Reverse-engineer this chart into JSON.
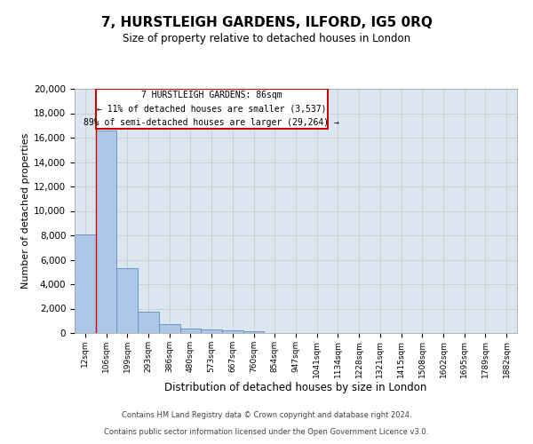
{
  "title": "7, HURSTLEIGH GARDENS, ILFORD, IG5 0RQ",
  "subtitle": "Size of property relative to detached houses in London",
  "xlabel": "Distribution of detached houses by size in London",
  "ylabel": "Number of detached properties",
  "bar_labels": [
    "12sqm",
    "106sqm",
    "199sqm",
    "293sqm",
    "386sqm",
    "480sqm",
    "573sqm",
    "667sqm",
    "760sqm",
    "854sqm",
    "947sqm",
    "1041sqm",
    "1134sqm",
    "1228sqm",
    "1321sqm",
    "1415sqm",
    "1508sqm",
    "1602sqm",
    "1695sqm",
    "1789sqm",
    "1882sqm"
  ],
  "bar_values": [
    8100,
    16600,
    5300,
    1750,
    700,
    380,
    300,
    220,
    180,
    0,
    0,
    0,
    0,
    0,
    0,
    0,
    0,
    0,
    0,
    0,
    0
  ],
  "bar_color": "#aec6e8",
  "bar_edge_color": "#5a8fc0",
  "annotation_box_text": "7 HURSTLEIGH GARDENS: 86sqm\n← 11% of detached houses are smaller (3,537)\n89% of semi-detached houses are larger (29,264) →",
  "annotation_box_color": "#ffffff",
  "annotation_box_edgecolor": "#cc0000",
  "property_line_x": 1,
  "ylim": [
    0,
    20000
  ],
  "yticks": [
    0,
    2000,
    4000,
    6000,
    8000,
    10000,
    12000,
    14000,
    16000,
    18000,
    20000
  ],
  "grid_color": "#cccccc",
  "background_color": "#dce6f0",
  "footer_line1": "Contains HM Land Registry data © Crown copyright and database right 2024.",
  "footer_line2": "Contains public sector information licensed under the Open Government Licence v3.0."
}
